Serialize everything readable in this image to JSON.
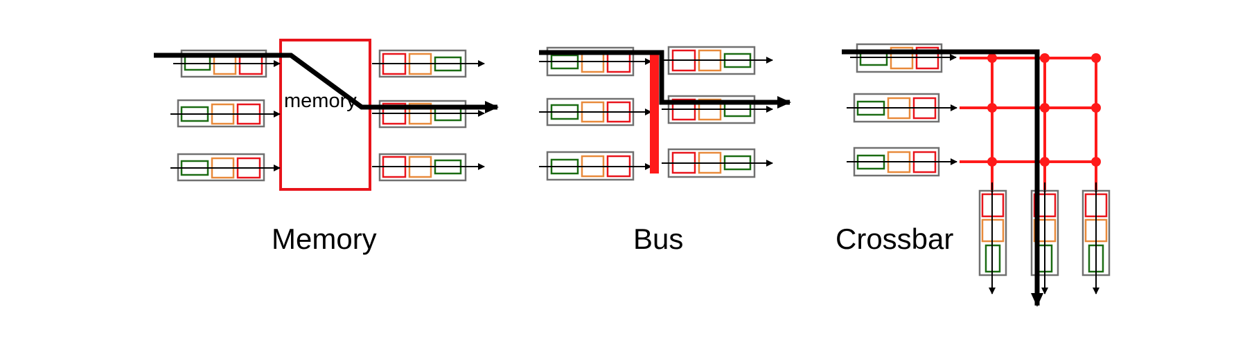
{
  "diagrams": [
    {
      "id": "memory",
      "caption": "Memory",
      "inner_label": "memory"
    },
    {
      "id": "bus",
      "caption": "Bus"
    },
    {
      "id": "crossbar",
      "caption": "Crossbar"
    }
  ],
  "colors": {
    "packet_red": "#e8141b",
    "packet_orange": "#e8893a",
    "packet_green": "#1a6b12",
    "queue_border": "#707070",
    "fabric_red": "#ff1a1a",
    "path": "#000000",
    "background": "#ffffff"
  }
}
